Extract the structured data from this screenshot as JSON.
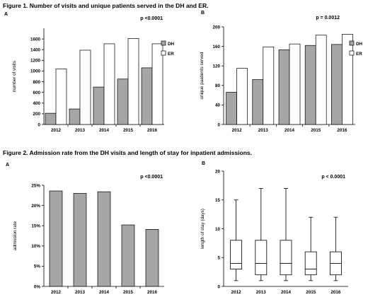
{
  "figure1": {
    "title": "Figure 1. Number of visits and unique patients served in the DH and ER."
  },
  "figure2": {
    "title": "Figure 2. Admission rate from the DH visits and length of stay for inpatient admissions."
  },
  "colors": {
    "dh": "#a6a6a6",
    "er": "#ffffff",
    "stroke": "#000000"
  },
  "chart_data": [
    {
      "id": "fig1a",
      "panel": "A",
      "type": "bar",
      "categories": [
        "2012",
        "2013",
        "2014",
        "2015",
        "2016"
      ],
      "series": [
        {
          "name": "DH",
          "values": [
            210,
            290,
            700,
            850,
            1060
          ]
        },
        {
          "name": "ER",
          "values": [
            1040,
            1390,
            1510,
            1610,
            1510
          ]
        }
      ],
      "ylabel": "number of visits",
      "ylim": [
        0,
        1800
      ],
      "yticks": [
        0,
        200,
        400,
        600,
        800,
        1000,
        1200,
        1400,
        1600
      ],
      "pvalue": "p <0.0001",
      "legend": "right"
    },
    {
      "id": "fig1b",
      "panel": "B",
      "type": "bar",
      "categories": [
        "2012",
        "2013",
        "2014",
        "2015",
        "2016"
      ],
      "series": [
        {
          "name": "DH",
          "values": [
            66,
            92,
            153,
            162,
            164
          ]
        },
        {
          "name": "ER",
          "values": [
            115,
            159,
            165,
            183,
            185
          ]
        }
      ],
      "ylabel": "unique paatients served",
      "ylim": [
        0,
        200
      ],
      "yticks": [
        0,
        40,
        80,
        120,
        160,
        200
      ],
      "pvalue": "p = 0.0012",
      "legend": "right"
    },
    {
      "id": "fig2a",
      "panel": "A",
      "type": "bar",
      "categories": [
        "2012",
        "2013",
        "2014",
        "2015",
        "2016"
      ],
      "series": [
        {
          "values": [
            23.6,
            23.0,
            23.4,
            15.2,
            14.1
          ]
        }
      ],
      "ylabel": "admission rate",
      "ylim": [
        0,
        25
      ],
      "yticks": [
        "0%",
        "5%",
        "10%",
        "15%",
        "20%",
        "25%"
      ],
      "ytick_values": [
        0,
        5,
        10,
        15,
        20,
        25
      ],
      "pvalue": "p <0.0001"
    },
    {
      "id": "fig2b",
      "panel": "B",
      "type": "box",
      "categories": [
        "2012",
        "2013",
        "2014",
        "2015",
        "2016"
      ],
      "boxes": [
        {
          "min": 1,
          "q1": 3,
          "median": 4,
          "q3": 8,
          "max": 15
        },
        {
          "min": 1,
          "q1": 2,
          "median": 4,
          "q3": 8,
          "max": 17
        },
        {
          "min": 1,
          "q1": 2,
          "median": 4,
          "q3": 8,
          "max": 17
        },
        {
          "min": 1,
          "q1": 2,
          "median": 3,
          "q3": 6,
          "max": 12
        },
        {
          "min": 1,
          "q1": 2,
          "median": 4,
          "q3": 6,
          "max": 12
        }
      ],
      "ylabel": "length of stay (days)",
      "ylim": [
        0,
        20
      ],
      "yticks": [
        0,
        5,
        10,
        15,
        20
      ],
      "pvalue": "p < 0.0001"
    }
  ]
}
